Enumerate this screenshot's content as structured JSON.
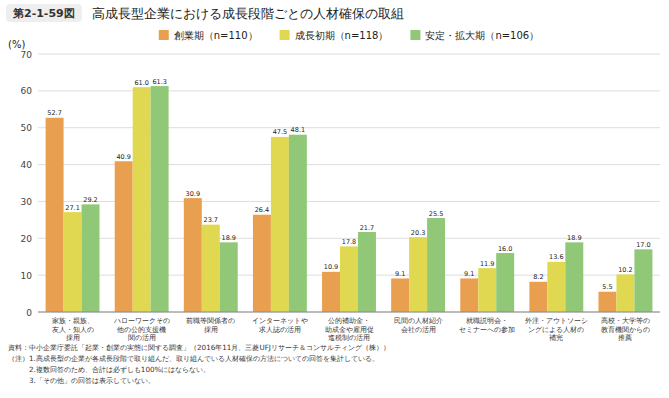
{
  "chart_data": {
    "type": "bar",
    "title": "高成長型企業における成長段階ごとの人材確保の取組",
    "figure_label": "第2-1-59図",
    "y_label": "(%)",
    "categories": [
      "家族・親族、\n友人・知人の\n採用",
      "ハローワークその\n他の公的支援機\n関の活用",
      "前職等関係者の\n採用",
      "インターネットや\n求人誌の活用",
      "公的補助金・\n助成金や雇用促\n進税制の活用",
      "民間の人材紹介\n会社の活用",
      "就職説明会・\nセミナーへの参加",
      "外注・アウトソーシ\nングによる人材の\n補完",
      "高校・大学等の\n教育機関からの\n推薦"
    ],
    "series": [
      {
        "name": "創業期（n=110）",
        "color": "#E8A050",
        "values": [
          52.7,
          40.9,
          30.9,
          26.4,
          10.9,
          9.1,
          9.1,
          8.2,
          5.5
        ]
      },
      {
        "name": "成長初期（n=118）",
        "color": "#E0D850",
        "values": [
          27.1,
          61.0,
          23.7,
          47.5,
          17.8,
          20.3,
          11.9,
          13.6,
          10.2
        ]
      },
      {
        "name": "安定・拡大期（n=106）",
        "color": "#90C878",
        "values": [
          29.2,
          61.3,
          18.9,
          48.1,
          21.7,
          25.5,
          16.0,
          18.9,
          17.0
        ]
      }
    ],
    "ylim": [
      0,
      70
    ],
    "yticks": [
      0,
      10,
      20,
      30,
      40,
      50,
      60,
      70
    ],
    "grid": true,
    "legend": "top",
    "data_labels": true,
    "footnotes": [
      "資料：中小企業庁委託「起業・創業の実態に関する調査」（2016年11月、三菱UFJリサーチ＆コンサルティング（株））",
      "（注）1.高成長型の企業が各成長段階で取り組んだ、取り組んでいる人材確保の方法についての回答を集計している。",
      "　　　2.複数回答のため、合計は必ずしも100%にはならない。",
      "　　　3.「その他」の回答は表示していない。"
    ]
  }
}
